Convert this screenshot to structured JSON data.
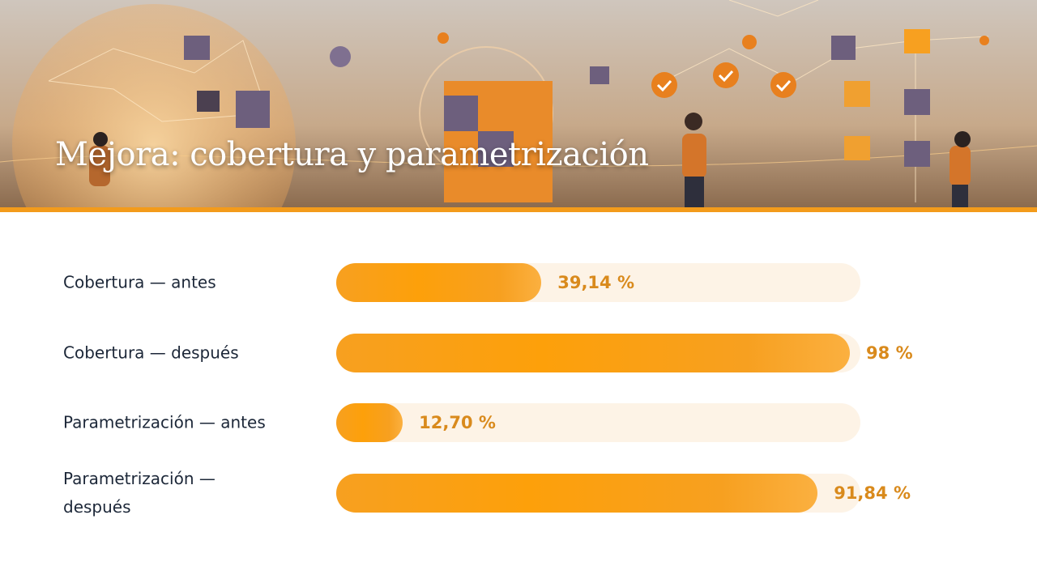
{
  "chart_data": {
    "type": "bar",
    "orientation": "horizontal",
    "title": "Mejora: cobertura y parametrización",
    "categories": [
      "Cobertura — antes",
      "Cobertura — después",
      "Parametrización — antes",
      "Parametrización — después"
    ],
    "values": [
      39.14,
      98,
      12.7,
      91.84
    ],
    "value_labels": [
      "39,14 %",
      "98 %",
      "12,70 %",
      "91,84 %"
    ],
    "xlim": [
      0,
      100
    ],
    "color": "#f7a020",
    "track_color": "#fdf3e6"
  }
}
